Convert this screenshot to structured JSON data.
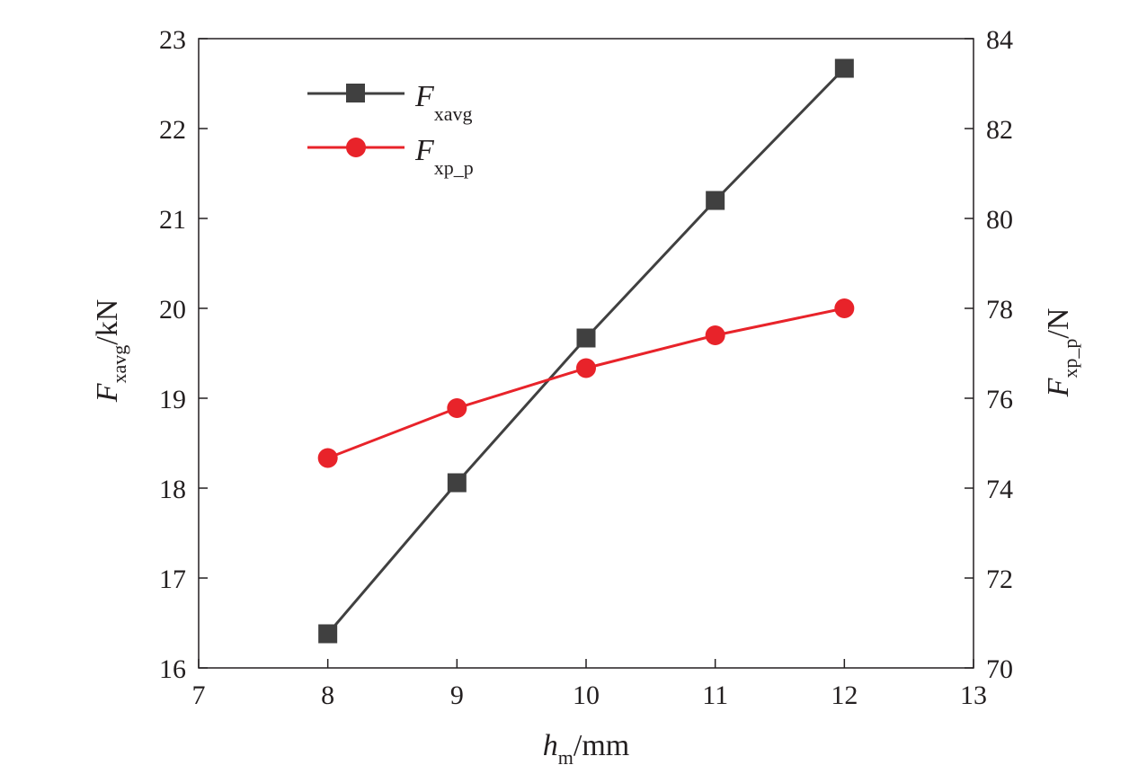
{
  "chart_data": {
    "type": "line",
    "x_axis": {
      "title_main": "h",
      "title_sub": "m",
      "title_unit": "/mm",
      "range": [
        7,
        13
      ],
      "ticks": [
        "7",
        "8",
        "9",
        "10",
        "11",
        "12",
        "13"
      ]
    },
    "y_axis_left": {
      "title_main": "F",
      "title_sub": "xavg",
      "title_unit": "/kN",
      "range": [
        16,
        23
      ],
      "ticks": [
        "16",
        "17",
        "18",
        "19",
        "20",
        "21",
        "22",
        "23"
      ]
    },
    "y_axis_right": {
      "title_main": "F",
      "title_sub": "xp_p",
      "title_unit": "/N",
      "range": [
        70,
        84
      ],
      "ticks": [
        "70",
        "72",
        "74",
        "76",
        "78",
        "80",
        "82",
        "84"
      ]
    },
    "x": [
      8,
      9,
      10,
      11,
      12
    ],
    "series": [
      {
        "name_main": "F",
        "name_sub": "xavg",
        "axis": "left",
        "color": "#404040",
        "marker": "square",
        "values": [
          16.38,
          18.06,
          19.67,
          21.2,
          22.67
        ]
      },
      {
        "name_main": "F",
        "name_sub": "xp_p",
        "axis": "right",
        "color": "#e8232a",
        "marker": "circle",
        "values": [
          74.67,
          75.78,
          76.67,
          77.4,
          78.0
        ]
      }
    ],
    "legend_position": "top-left",
    "grid": false
  }
}
